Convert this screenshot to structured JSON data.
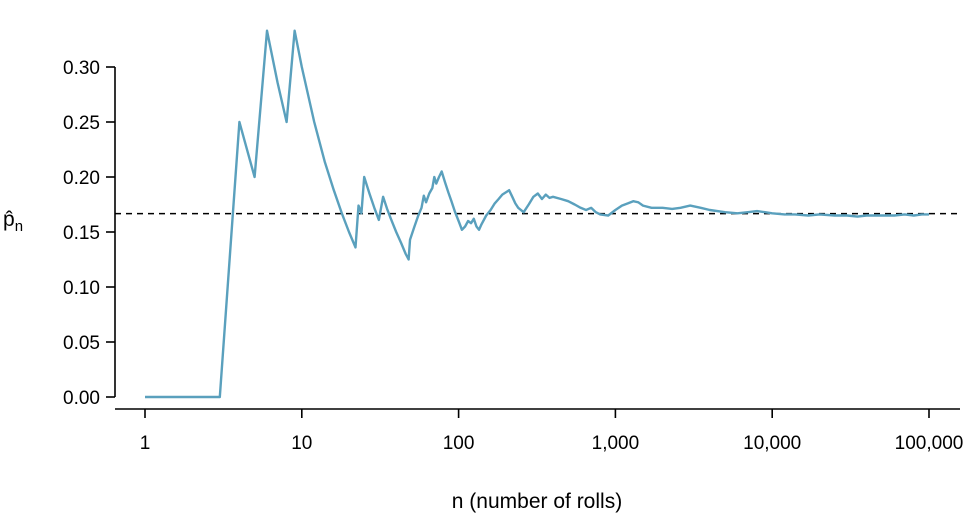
{
  "chart_data": {
    "type": "line",
    "title": "",
    "xlabel": "n (number of rolls)",
    "ylabel": {
      "main": "p̂",
      "subscript": "n"
    },
    "x_scale": "log",
    "xlim": [
      1,
      100000
    ],
    "ylim": [
      0,
      0.3
    ],
    "x_ticks": [
      {
        "value": 1,
        "label": "1"
      },
      {
        "value": 10,
        "label": "10"
      },
      {
        "value": 100,
        "label": "100"
      },
      {
        "value": 1000,
        "label": "1,000"
      },
      {
        "value": 10000,
        "label": "10,000"
      },
      {
        "value": 100000,
        "label": "100,000"
      }
    ],
    "y_ticks": [
      {
        "value": 0.0,
        "label": "0.00"
      },
      {
        "value": 0.05,
        "label": "0.05"
      },
      {
        "value": 0.1,
        "label": "0.10"
      },
      {
        "value": 0.15,
        "label": "0.15"
      },
      {
        "value": 0.2,
        "label": "0.20"
      },
      {
        "value": 0.25,
        "label": "0.25"
      },
      {
        "value": 0.3,
        "label": "0.30"
      }
    ],
    "reference_line": {
      "y": 0.1667,
      "style": "dashed",
      "color": "#000000"
    },
    "grid": false,
    "series": [
      {
        "color": "#5aa0bd",
        "x": [
          1,
          2,
          3,
          4,
          5,
          6,
          7,
          8,
          9,
          10,
          12,
          14,
          16,
          18,
          20,
          22,
          23,
          24,
          25,
          27,
          29,
          31,
          33,
          35,
          37,
          40,
          43,
          46,
          48,
          49,
          52,
          55,
          58,
          60,
          62,
          65,
          68,
          70,
          72,
          75,
          78,
          82,
          86,
          90,
          95,
          100,
          105,
          110,
          115,
          120,
          125,
          130,
          135,
          140,
          150,
          160,
          170,
          180,
          190,
          200,
          210,
          220,
          230,
          240,
          260,
          280,
          300,
          320,
          340,
          360,
          380,
          400,
          450,
          500,
          550,
          600,
          650,
          700,
          750,
          800,
          900,
          1000,
          1100,
          1200,
          1300,
          1400,
          1500,
          1700,
          2000,
          2300,
          2600,
          3000,
          3500,
          4000,
          5000,
          6000,
          7000,
          8000,
          9000,
          10000,
          12000,
          14000,
          17000,
          20000,
          25000,
          30000,
          35000,
          40000,
          50000,
          60000,
          70000,
          80000,
          90000,
          100000
        ],
        "y": [
          0,
          0,
          0,
          0.25,
          0.2,
          0.333,
          0.286,
          0.25,
          0.333,
          0.3,
          0.25,
          0.214,
          0.188,
          0.167,
          0.15,
          0.136,
          0.174,
          0.167,
          0.2,
          0.185,
          0.172,
          0.161,
          0.182,
          0.171,
          0.162,
          0.15,
          0.14,
          0.13,
          0.125,
          0.143,
          0.154,
          0.164,
          0.172,
          0.183,
          0.177,
          0.185,
          0.19,
          0.2,
          0.194,
          0.2,
          0.205,
          0.195,
          0.186,
          0.178,
          0.168,
          0.16,
          0.152,
          0.155,
          0.16,
          0.158,
          0.162,
          0.155,
          0.152,
          0.157,
          0.165,
          0.17,
          0.176,
          0.18,
          0.184,
          0.186,
          0.188,
          0.182,
          0.176,
          0.172,
          0.168,
          0.175,
          0.182,
          0.185,
          0.18,
          0.184,
          0.181,
          0.182,
          0.18,
          0.178,
          0.175,
          0.172,
          0.17,
          0.172,
          0.168,
          0.166,
          0.165,
          0.17,
          0.174,
          0.176,
          0.178,
          0.177,
          0.174,
          0.172,
          0.172,
          0.171,
          0.172,
          0.174,
          0.172,
          0.17,
          0.168,
          0.167,
          0.168,
          0.169,
          0.168,
          0.167,
          0.166,
          0.166,
          0.165,
          0.166,
          0.165,
          0.165,
          0.164,
          0.165,
          0.165,
          0.165,
          0.166,
          0.165,
          0.166,
          0.166
        ]
      }
    ]
  }
}
